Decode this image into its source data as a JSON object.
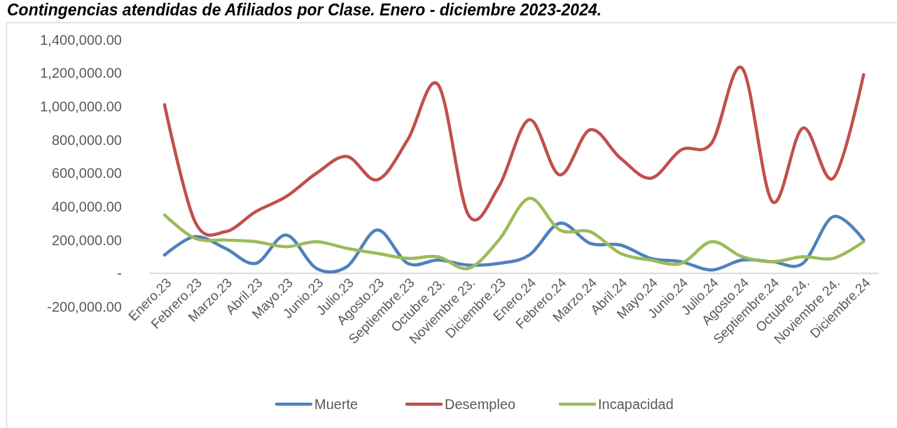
{
  "chart_data": {
    "type": "line",
    "title": "Contingencias atendidas de Afiliados por Clase. Enero - diciembre 2023-2024.",
    "categories": [
      "Enero.23",
      "Febrero.23",
      "Marzo.23",
      "Abril.23",
      "Mayo.23",
      "Junio.23",
      "Julio.23",
      "Agosto.23",
      "Septiembre.23",
      "Octubre 23.",
      "Noviembre 23.",
      "Diciembre.23",
      "Enero.24",
      "Febrero.24",
      "Marzo.24",
      "Abril.24",
      "Mayo.24",
      "Junio.24",
      "Julio.24",
      "Agosto.24",
      "Septiembre.24",
      "Octubre 24.",
      "Noviembre 24.",
      "Diciembre.24"
    ],
    "series": [
      {
        "name": "Muerte",
        "color": "#4f81bd",
        "values": [
          110000,
          220000,
          150000,
          60000,
          230000,
          30000,
          40000,
          260000,
          60000,
          80000,
          50000,
          60000,
          110000,
          300000,
          180000,
          170000,
          90000,
          70000,
          20000,
          80000,
          70000,
          60000,
          340000,
          200000
        ]
      },
      {
        "name": "Desempleo",
        "color": "#c0504d",
        "values": [
          1010000,
          310000,
          250000,
          370000,
          460000,
          600000,
          700000,
          560000,
          800000,
          1130000,
          350000,
          520000,
          920000,
          590000,
          860000,
          690000,
          570000,
          740000,
          780000,
          1230000,
          430000,
          870000,
          570000,
          1190000
        ]
      },
      {
        "name": "Incapacidad",
        "color": "#9bbb59",
        "values": [
          350000,
          210000,
          200000,
          190000,
          160000,
          190000,
          150000,
          120000,
          90000,
          100000,
          30000,
          200000,
          450000,
          260000,
          250000,
          120000,
          80000,
          60000,
          190000,
          100000,
          70000,
          100000,
          90000,
          190000
        ]
      }
    ],
    "ylim": [
      -200000,
      1400000
    ],
    "yticks": [
      {
        "value": -200000,
        "label": "-200,000.00"
      },
      {
        "value": 0,
        "label": "-"
      },
      {
        "value": 200000,
        "label": "200,000.00"
      },
      {
        "value": 400000,
        "label": "400,000.00"
      },
      {
        "value": 600000,
        "label": "600,000.00"
      },
      {
        "value": 800000,
        "label": "800,000.00"
      },
      {
        "value": 1000000,
        "label": "1,000,000.00"
      },
      {
        "value": 1200000,
        "label": "1,200,000.00"
      },
      {
        "value": 1400000,
        "label": "1,400,000.00"
      }
    ],
    "legend": "bottom"
  }
}
